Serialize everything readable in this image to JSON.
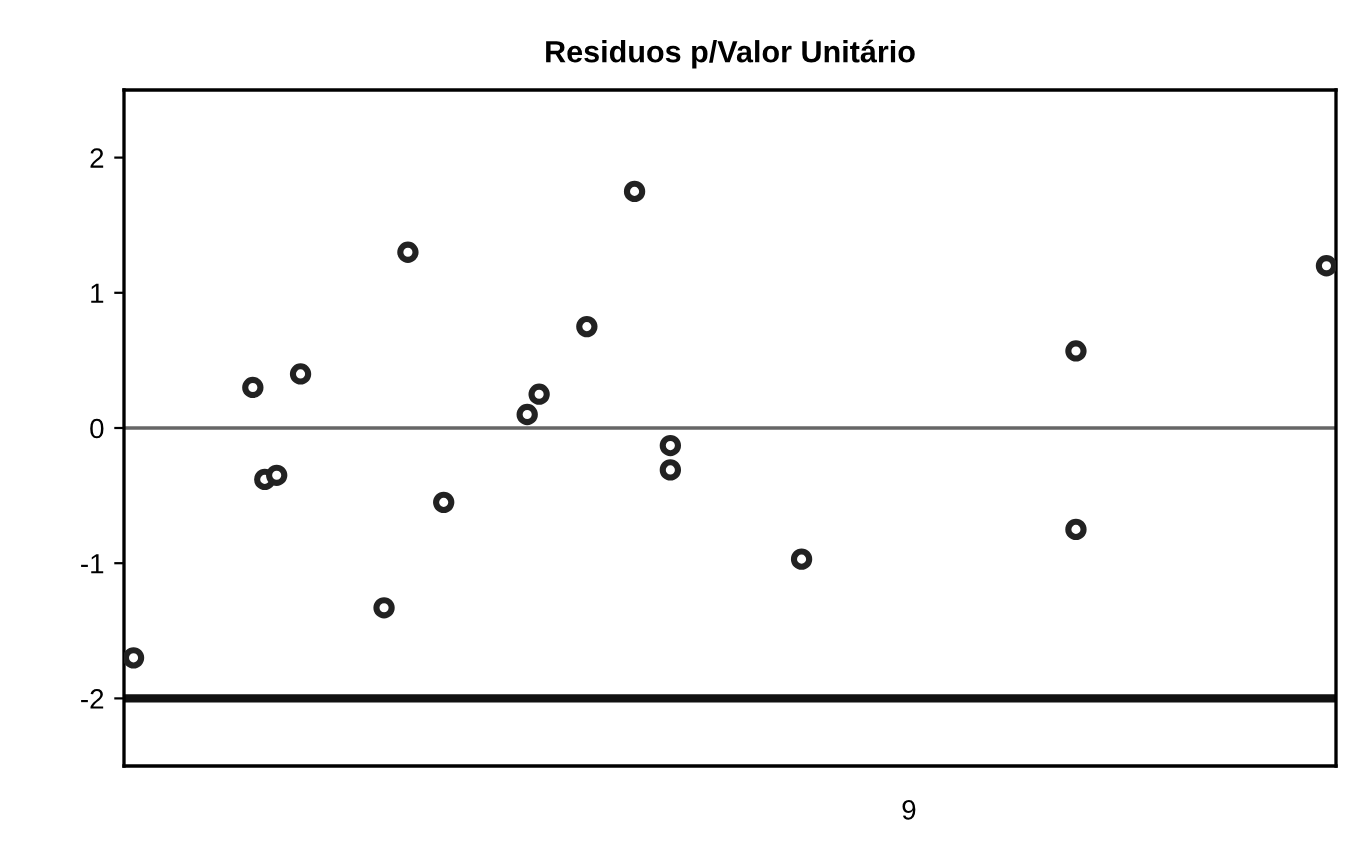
{
  "chart_data": {
    "type": "scatter",
    "title": "Residuos p/Valor Unitário",
    "categories": [
      null,
      null,
      null,
      null,
      null,
      null,
      null,
      null,
      null,
      null,
      null,
      null,
      null,
      null,
      null,
      null,
      null,
      null,
      null,
      null,
      null,
      null,
      null,
      null,
      null,
      null,
      null,
      null,
      null,
      null,
      null,
      null,
      null,
      null,
      null,
      null,
      null,
      null,
      null,
      null,
      null,
      null,
      null,
      null,
      null,
      null,
      null,
      null,
      null,
      null,
      null,
      null,
      null,
      null,
      null,
      null,
      null,
      null,
      null,
      null,
      null,
      null,
      null,
      null,
      null,
      "9",
      null,
      null,
      null,
      null,
      null,
      null,
      null,
      null,
      null,
      null,
      null,
      null,
      null,
      null,
      null,
      null,
      null,
      null,
      null,
      null,
      null,
      null,
      null,
      null,
      null,
      null,
      null,
      null,
      null,
      null,
      null,
      null,
      null,
      null,
      null
    ],
    "series": [
      {
        "color": "#222222",
        "values": [
          -1.7,
          null,
          null,
          null,
          null,
          null,
          null,
          null,
          null,
          null,
          0.3,
          -0.38,
          -0.35,
          null,
          0.4,
          null,
          null,
          null,
          null,
          null,
          null,
          -1.33,
          null,
          1.3,
          null,
          null,
          -0.55,
          null,
          null,
          null,
          null,
          null,
          null,
          0.1,
          0.25,
          null,
          null,
          null,
          0.75,
          null,
          null,
          null,
          1.75,
          null,
          null,
          -0.13,
          null,
          null,
          null,
          null,
          null,
          null,
          null,
          null,
          null,
          null,
          -0.97,
          null,
          null,
          null,
          null,
          null,
          null,
          null,
          null,
          null,
          null,
          null,
          null,
          null,
          null,
          null,
          null,
          null,
          null,
          null,
          null,
          null,
          null,
          0.57,
          null,
          null,
          null,
          null,
          null,
          null,
          null,
          null,
          null,
          null,
          null,
          null,
          null,
          null,
          null,
          null,
          null,
          null,
          null,
          null,
          1.2
        ]
      },
      {
        "color": "#222222",
        "values": [
          null,
          null,
          null,
          null,
          null,
          null,
          null,
          null,
          null,
          null,
          null,
          null,
          null,
          null,
          null,
          null,
          null,
          null,
          null,
          null,
          null,
          null,
          null,
          null,
          null,
          null,
          null,
          null,
          null,
          null,
          null,
          null,
          null,
          null,
          null,
          null,
          null,
          null,
          null,
          null,
          null,
          null,
          null,
          null,
          null,
          -0.31,
          null,
          null,
          null,
          null,
          null,
          null,
          null,
          null,
          null,
          null,
          null,
          null,
          null,
          null,
          null,
          null,
          null,
          null,
          null,
          null,
          null,
          null,
          null,
          null,
          null,
          null,
          null,
          null,
          null,
          null,
          null,
          null,
          null,
          -0.75,
          null,
          null,
          null,
          null,
          null,
          null,
          null,
          null,
          null,
          null,
          null,
          null,
          null,
          null,
          null,
          null,
          null,
          null,
          null,
          null,
          null
        ]
      }
    ],
    "ylim": [
      -2.5,
      2.5
    ],
    "yticks": [
      -2,
      -1,
      0,
      1,
      2
    ],
    "ref_lines": [
      {
        "axis": "y",
        "value": 0,
        "color": "#666666"
      },
      {
        "axis": "y",
        "value": -2,
        "color": "#111111"
      }
    ],
    "marker": "circle",
    "grid": false
  }
}
